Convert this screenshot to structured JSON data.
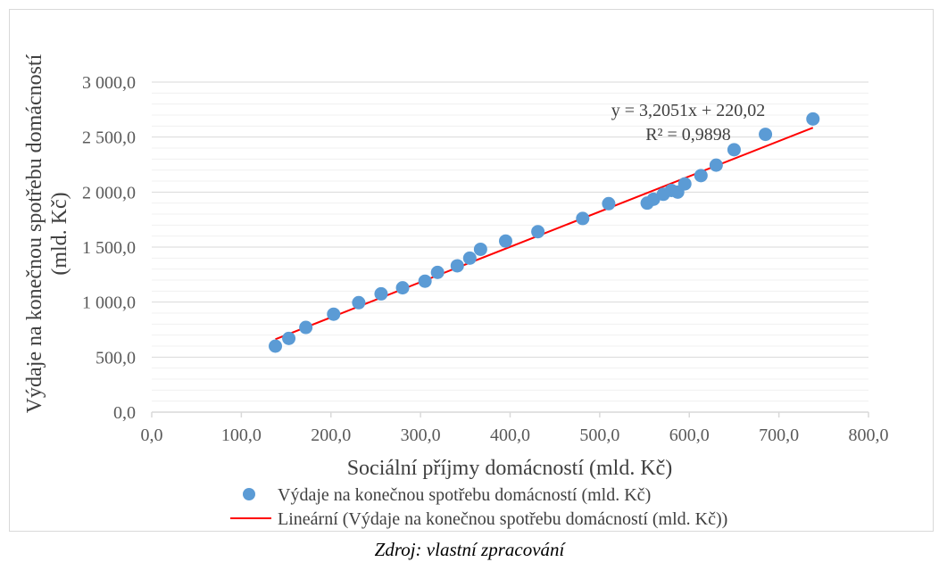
{
  "caption": "Zdroj: vlastní zpracování",
  "chart_data": {
    "type": "scatter",
    "title": "",
    "xlabel": "Sociální příjmy domácností (mld. Kč)",
    "ylabel_line1": "Výdaje na konečnou spotřebu domácností",
    "ylabel_line2": "(mld. Kč)",
    "xlim": [
      0,
      800
    ],
    "ylim": [
      0,
      3000
    ],
    "x_ticks": [
      0,
      100,
      200,
      300,
      400,
      500,
      600,
      700,
      800
    ],
    "x_tick_labels": [
      "0,0",
      "100,0",
      "200,0",
      "300,0",
      "400,0",
      "500,0",
      "600,0",
      "700,0",
      "800,0"
    ],
    "y_ticks": [
      0,
      500,
      1000,
      1500,
      2000,
      2500,
      3000
    ],
    "y_tick_labels": [
      "0,0",
      "500,0",
      "1 000,0",
      "1 500,0",
      "2 000,0",
      "2 500,0",
      "3 000,0"
    ],
    "y_minor_step": 100,
    "grid": true,
    "legend_position": "bottom",
    "marker_color": "#5b9bd5",
    "trend_color": "#ff0000",
    "series": [
      {
        "name": "Výdaje na konečnou spotřebu domácností (mld. Kč)",
        "x": [
          138,
          153,
          172,
          203,
          231,
          256,
          280,
          305,
          319,
          341,
          355,
          367,
          395,
          431,
          481,
          510,
          553,
          560,
          571,
          580,
          587,
          595,
          613,
          630,
          650,
          685,
          738
        ],
        "y": [
          600,
          670,
          770,
          890,
          995,
          1075,
          1130,
          1190,
          1270,
          1330,
          1400,
          1480,
          1555,
          1640,
          1760,
          1895,
          1900,
          1935,
          1980,
          2015,
          2000,
          2075,
          2150,
          2245,
          2385,
          2525,
          2665
        ]
      }
    ],
    "trendline": {
      "name": "Lineární (Výdaje na konečnou spotřebu domácností (mld. Kč))",
      "slope": 3.2051,
      "intercept": 220.02,
      "x_start": 138,
      "x_end": 738,
      "equation": "y = 3,2051x + 220,02",
      "r_squared": "R² = 0,9898"
    }
  }
}
